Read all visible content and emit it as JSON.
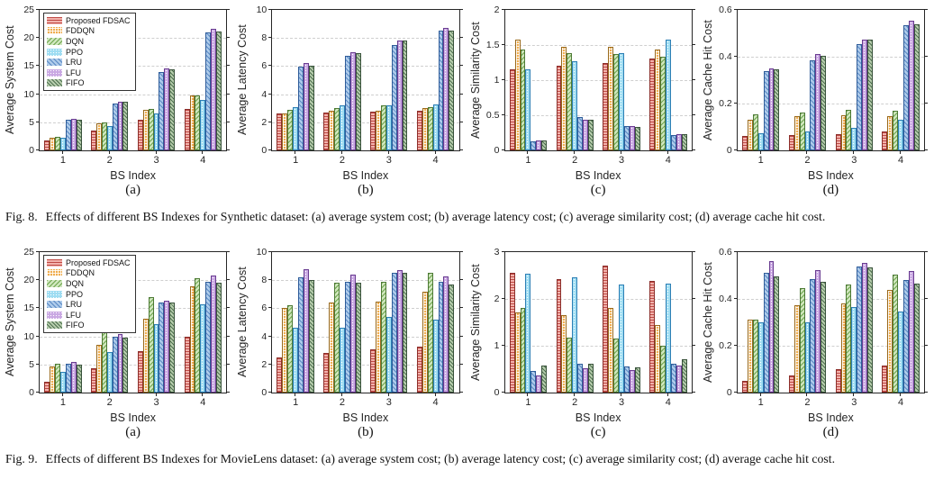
{
  "legend": {
    "position": "top-left",
    "entries": [
      "Proposed FDSAC",
      "FDDQN",
      "DQN",
      "PPO",
      "LRU",
      "LFU",
      "FIFO"
    ]
  },
  "series_styles": [
    {
      "name": "Proposed FDSAC",
      "fill": "#f2b2ac",
      "hatch": "#bf4a45",
      "edge": "#8c2f2b",
      "pattern": "horizontal-lines"
    },
    {
      "name": "FDDQN",
      "fill": "#f0ad4e",
      "hatch": "#ffffff",
      "edge": "#9a6a1c",
      "pattern": "grid-dots"
    },
    {
      "name": "DQN",
      "fill": "#cfe6bd",
      "hatch": "#6fa64e",
      "edge": "#4d7a35",
      "pattern": "diagonal"
    },
    {
      "name": "PPO",
      "fill": "#9edcf2",
      "hatch": "#ffffff",
      "edge": "#2d7fb5",
      "pattern": "dots"
    },
    {
      "name": "LRU",
      "fill": "#aecbea",
      "hatch": "#5b8ac5",
      "edge": "#2f5c99",
      "pattern": "back-diagonal"
    },
    {
      "name": "LFU",
      "fill": "#c9a8e2",
      "hatch": "#ffffff",
      "edge": "#6a3d91",
      "pattern": "dots"
    },
    {
      "name": "FIFO",
      "fill": "#b7cdad",
      "hatch": "#4e7050",
      "edge": "#39523b",
      "pattern": "back-diagonal"
    }
  ],
  "chart_data": [
    {
      "figure": "Fig. 8",
      "sub": "(a)",
      "type": "bar",
      "ylabel": "Average System Cost",
      "xlabel": "BS Index",
      "ylim": [
        0,
        25
      ],
      "yticks": [
        0,
        5,
        10,
        15,
        20,
        25
      ],
      "categories": [
        "1",
        "2",
        "3",
        "4"
      ],
      "grid": true,
      "legend": true,
      "series": [
        {
          "name": "Proposed FDSAC",
          "values": [
            1.8,
            3.6,
            5.4,
            7.3
          ]
        },
        {
          "name": "FDDQN",
          "values": [
            2.3,
            4.8,
            7.2,
            9.7
          ]
        },
        {
          "name": "DQN",
          "values": [
            2.4,
            4.9,
            7.3,
            9.8
          ]
        },
        {
          "name": "PPO",
          "values": [
            2.2,
            4.4,
            6.6,
            8.9
          ]
        },
        {
          "name": "LRU",
          "values": [
            5.4,
            8.4,
            14.0,
            21.0
          ]
        },
        {
          "name": "LFU",
          "values": [
            5.6,
            8.7,
            14.6,
            21.6
          ]
        },
        {
          "name": "FIFO",
          "values": [
            5.5,
            8.6,
            14.5,
            21.1
          ]
        }
      ]
    },
    {
      "figure": "Fig. 8",
      "sub": "(b)",
      "type": "bar",
      "ylabel": "Average Latency Cost",
      "xlabel": "BS Index",
      "ylim": [
        0,
        10
      ],
      "yticks": [
        0,
        2,
        4,
        6,
        8,
        10
      ],
      "categories": [
        "1",
        "2",
        "3",
        "4"
      ],
      "grid": true,
      "legend": false,
      "series": [
        {
          "name": "Proposed FDSAC",
          "values": [
            2.6,
            2.7,
            2.75,
            2.85
          ]
        },
        {
          "name": "FDDQN",
          "values": [
            2.65,
            2.8,
            2.85,
            3.0
          ]
        },
        {
          "name": "DQN",
          "values": [
            2.9,
            3.0,
            3.2,
            3.1
          ]
        },
        {
          "name": "PPO",
          "values": [
            3.1,
            3.2,
            3.2,
            3.25
          ]
        },
        {
          "name": "LRU",
          "values": [
            5.95,
            6.7,
            7.5,
            8.5
          ]
        },
        {
          "name": "LFU",
          "values": [
            6.25,
            7.0,
            7.8,
            8.7
          ]
        },
        {
          "name": "FIFO",
          "values": [
            6.05,
            6.9,
            7.8,
            8.5
          ]
        }
      ]
    },
    {
      "figure": "Fig. 8",
      "sub": "(c)",
      "type": "bar",
      "ylabel": "Average Similarity Cost",
      "xlabel": "BS Index",
      "ylim": [
        0,
        2
      ],
      "yticks": [
        0,
        0.5,
        1,
        1.5,
        2
      ],
      "categories": [
        "1",
        "2",
        "3",
        "4"
      ],
      "grid": true,
      "legend": false,
      "series": [
        {
          "name": "Proposed FDSAC",
          "values": [
            1.15,
            1.2,
            1.25,
            1.31
          ]
        },
        {
          "name": "FDDQN",
          "values": [
            1.58,
            1.47,
            1.47,
            1.43
          ]
        },
        {
          "name": "DQN",
          "values": [
            1.44,
            1.38,
            1.37,
            1.33
          ]
        },
        {
          "name": "PPO",
          "values": [
            1.16,
            1.27,
            1.38,
            1.58
          ]
        },
        {
          "name": "LRU",
          "values": [
            0.13,
            0.48,
            0.35,
            0.22
          ]
        },
        {
          "name": "LFU",
          "values": [
            0.14,
            0.44,
            0.34,
            0.23
          ]
        },
        {
          "name": "FIFO",
          "values": [
            0.14,
            0.44,
            0.33,
            0.23
          ]
        }
      ]
    },
    {
      "figure": "Fig. 8",
      "sub": "(d)",
      "type": "bar",
      "ylabel": "Average Cache Hit Cost",
      "xlabel": "BS Index",
      "ylim": [
        0,
        0.6
      ],
      "yticks": [
        0,
        0.2,
        0.4,
        0.6
      ],
      "categories": [
        "1",
        "2",
        "3",
        "4"
      ],
      "grid": true,
      "legend": false,
      "series": [
        {
          "name": "Proposed FDSAC",
          "values": [
            0.06,
            0.065,
            0.07,
            0.08
          ]
        },
        {
          "name": "FDDQN",
          "values": [
            0.13,
            0.145,
            0.15,
            0.145
          ]
        },
        {
          "name": "DQN",
          "values": [
            0.155,
            0.16,
            0.175,
            0.17
          ]
        },
        {
          "name": "PPO",
          "values": [
            0.075,
            0.08,
            0.095,
            0.13
          ]
        },
        {
          "name": "LRU",
          "values": [
            0.34,
            0.385,
            0.455,
            0.535
          ]
        },
        {
          "name": "LFU",
          "values": [
            0.35,
            0.41,
            0.475,
            0.555
          ]
        },
        {
          "name": "FIFO",
          "values": [
            0.345,
            0.405,
            0.475,
            0.54
          ]
        }
      ]
    },
    {
      "figure": "Fig. 9",
      "sub": "(a)",
      "type": "bar",
      "ylabel": "Average System Cost",
      "xlabel": "BS Index",
      "ylim": [
        0,
        25
      ],
      "yticks": [
        0,
        5,
        10,
        15,
        20,
        25
      ],
      "categories": [
        "1",
        "2",
        "3",
        "4"
      ],
      "grid": true,
      "legend": true,
      "series": [
        {
          "name": "Proposed FDSAC",
          "values": [
            2.0,
            4.4,
            7.3,
            9.9
          ]
        },
        {
          "name": "FDDQN",
          "values": [
            4.6,
            8.5,
            13.1,
            18.9
          ]
        },
        {
          "name": "DQN",
          "values": [
            5.1,
            11.2,
            17.0,
            20.3
          ]
        },
        {
          "name": "PPO",
          "values": [
            3.7,
            7.2,
            12.2,
            15.7
          ]
        },
        {
          "name": "LRU",
          "values": [
            5.1,
            9.9,
            16.1,
            19.7
          ]
        },
        {
          "name": "LFU",
          "values": [
            5.4,
            10.4,
            16.4,
            20.8
          ]
        },
        {
          "name": "FIFO",
          "values": [
            4.9,
            9.7,
            16.0,
            19.5
          ]
        }
      ]
    },
    {
      "figure": "Fig. 9",
      "sub": "(b)",
      "type": "bar",
      "ylabel": "Average Latency Cost",
      "xlabel": "BS Index",
      "ylim": [
        0,
        10
      ],
      "yticks": [
        0,
        2,
        4,
        6,
        8,
        10
      ],
      "categories": [
        "1",
        "2",
        "3",
        "4"
      ],
      "grid": true,
      "legend": false,
      "series": [
        {
          "name": "Proposed FDSAC",
          "values": [
            2.5,
            2.85,
            3.1,
            3.3
          ]
        },
        {
          "name": "FDDQN",
          "values": [
            6.0,
            6.4,
            6.5,
            7.2
          ]
        },
        {
          "name": "DQN",
          "values": [
            6.2,
            7.8,
            7.9,
            8.5
          ]
        },
        {
          "name": "PPO",
          "values": [
            4.6,
            4.6,
            5.4,
            5.2
          ]
        },
        {
          "name": "LRU",
          "values": [
            8.2,
            7.9,
            8.55,
            7.9
          ]
        },
        {
          "name": "LFU",
          "values": [
            8.8,
            8.4,
            8.75,
            8.3
          ]
        },
        {
          "name": "FIFO",
          "values": [
            8.0,
            7.8,
            8.5,
            7.7
          ]
        }
      ]
    },
    {
      "figure": "Fig. 9",
      "sub": "(c)",
      "type": "bar",
      "ylabel": "Average Similarity Cost",
      "xlabel": "BS Index",
      "ylim": [
        0,
        3
      ],
      "yticks": [
        0,
        1,
        2,
        3
      ],
      "categories": [
        "1",
        "2",
        "3",
        "4"
      ],
      "grid": true,
      "legend": false,
      "series": [
        {
          "name": "Proposed FDSAC",
          "values": [
            2.55,
            2.42,
            2.71,
            2.39
          ]
        },
        {
          "name": "FDDQN",
          "values": [
            1.72,
            1.66,
            1.8,
            1.45
          ]
        },
        {
          "name": "DQN",
          "values": [
            1.8,
            1.18,
            1.16,
            1.0
          ]
        },
        {
          "name": "PPO",
          "values": [
            2.54,
            2.47,
            2.3,
            2.32
          ]
        },
        {
          "name": "LRU",
          "values": [
            0.46,
            0.61,
            0.55,
            0.62
          ]
        },
        {
          "name": "LFU",
          "values": [
            0.36,
            0.52,
            0.48,
            0.58
          ]
        },
        {
          "name": "FIFO",
          "values": [
            0.57,
            0.62,
            0.54,
            0.72
          ]
        }
      ]
    },
    {
      "figure": "Fig. 9",
      "sub": "(d)",
      "type": "bar",
      "ylabel": "Average Cache Hit Cost",
      "xlabel": "BS Index",
      "ylim": [
        0,
        0.6
      ],
      "yticks": [
        0,
        0.2,
        0.4,
        0.6
      ],
      "categories": [
        "1",
        "2",
        "3",
        "4"
      ],
      "grid": true,
      "legend": false,
      "series": [
        {
          "name": "Proposed FDSAC",
          "values": [
            0.05,
            0.075,
            0.1,
            0.115
          ]
        },
        {
          "name": "FDDQN",
          "values": [
            0.31,
            0.375,
            0.38,
            0.44
          ]
        },
        {
          "name": "DQN",
          "values": [
            0.31,
            0.445,
            0.46,
            0.505
          ]
        },
        {
          "name": "PPO",
          "values": [
            0.3,
            0.3,
            0.365,
            0.345
          ]
        },
        {
          "name": "LRU",
          "values": [
            0.51,
            0.485,
            0.54,
            0.48
          ]
        },
        {
          "name": "LFU",
          "values": [
            0.56,
            0.525,
            0.555,
            0.52
          ]
        },
        {
          "name": "FIFO",
          "values": [
            0.495,
            0.475,
            0.535,
            0.465
          ]
        }
      ]
    }
  ],
  "captions": [
    {
      "label": "Fig. 8.",
      "text": "Effects of different BS Indexes for Synthetic dataset: (a) average system cost; (b) average latency cost; (c) average similarity cost; (d) average cache hit cost."
    },
    {
      "label": "Fig. 9.",
      "text": "Effects of different BS Indexes for MovieLens dataset: (a) average system cost; (b) average latency cost; (c) average similarity cost; (d) average cache hit cost."
    }
  ]
}
